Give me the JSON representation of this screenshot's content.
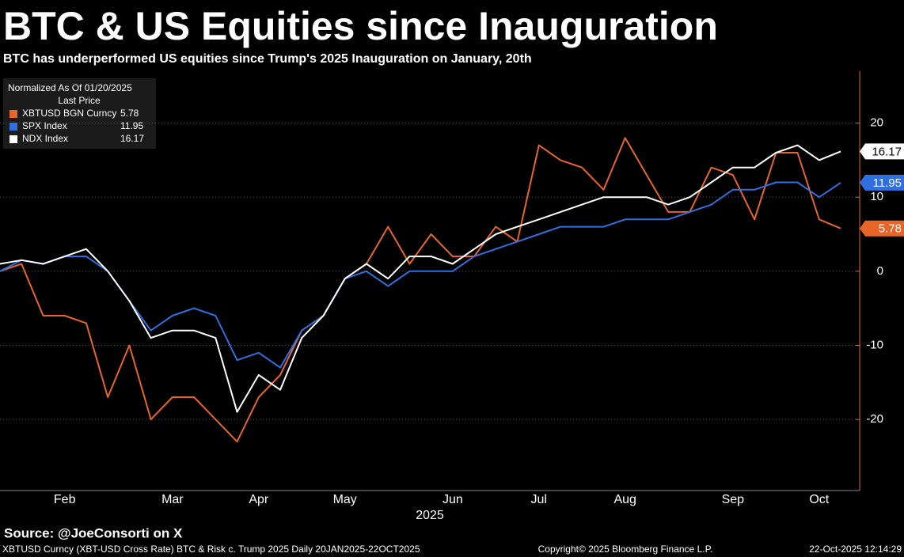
{
  "chart_data": {
    "type": "line",
    "title": "BTC & US Equities since Inauguration",
    "subtitle": "BTC has underperformed US equities since Trump's 2025 Inauguration on January, 20th",
    "legend_title": "Normalized As Of 01/20/2025",
    "legend_subtitle": "Last Price",
    "legend_position": "upper left",
    "x_label": "2025",
    "source": "Source: @JoeConsorti on X",
    "footer_left": "XBTUSD Curncy (XBT-USD Cross Rate) BTC & Risk c. Trump 2025 Daily 20JAN2025-22OCT2025",
    "footer_center": "Copyright© 2025 Bloomberg Finance L.P.",
    "footer_right": "22-Oct-2025 12:14:29",
    "categories": [
      null,
      null,
      null,
      "Feb",
      null,
      null,
      null,
      null,
      "Mar",
      null,
      null,
      null,
      "Apr",
      null,
      null,
      null,
      "May",
      null,
      null,
      null,
      null,
      "Jun",
      null,
      null,
      null,
      "Jul",
      null,
      null,
      null,
      "Aug",
      null,
      null,
      null,
      null,
      "Sep",
      null,
      null,
      null,
      "Oct",
      null
    ],
    "ylim": [
      -29.6,
      27
    ],
    "yticks": [
      -20,
      -10,
      0,
      10,
      20
    ],
    "grid": true,
    "series": [
      {
        "name": "XBTUSD BGN Curncy",
        "color": "#e8652a",
        "values": [
          0,
          1,
          -6,
          -6,
          -7,
          -17,
          -10,
          -20,
          -17,
          -17,
          -20,
          -23,
          -17,
          -14,
          -8,
          -6,
          -1,
          1,
          6,
          1,
          5,
          2,
          2,
          6,
          4,
          17,
          15,
          14,
          11,
          18,
          13,
          8,
          8,
          14,
          13,
          7,
          16,
          16,
          7,
          5.78
        ]
      },
      {
        "name": "SPX Index",
        "color": "#2f6fe0",
        "values": [
          0,
          1.5,
          1,
          2,
          2,
          0,
          -4,
          -8,
          -6,
          -5,
          -6,
          -12,
          -11,
          -13,
          -8,
          -6,
          -1,
          0,
          -2,
          0,
          0,
          0,
          2,
          3,
          4,
          5,
          6,
          6,
          6,
          7,
          7,
          7,
          8,
          9,
          11,
          11,
          12,
          12,
          10,
          11.95
        ]
      },
      {
        "name": "NDX Index",
        "color": "#ffffff",
        "values": [
          1,
          1.5,
          1,
          2,
          3,
          0,
          -4,
          -9,
          -8,
          -8,
          -9,
          -19,
          -14,
          -16,
          -9,
          -6,
          -1,
          1,
          -1,
          2,
          2,
          1,
          3,
          5,
          6,
          7,
          8,
          9,
          10,
          10,
          10,
          9,
          10,
          12,
          14,
          14,
          16,
          17,
          15,
          16.17
        ]
      }
    ]
  }
}
